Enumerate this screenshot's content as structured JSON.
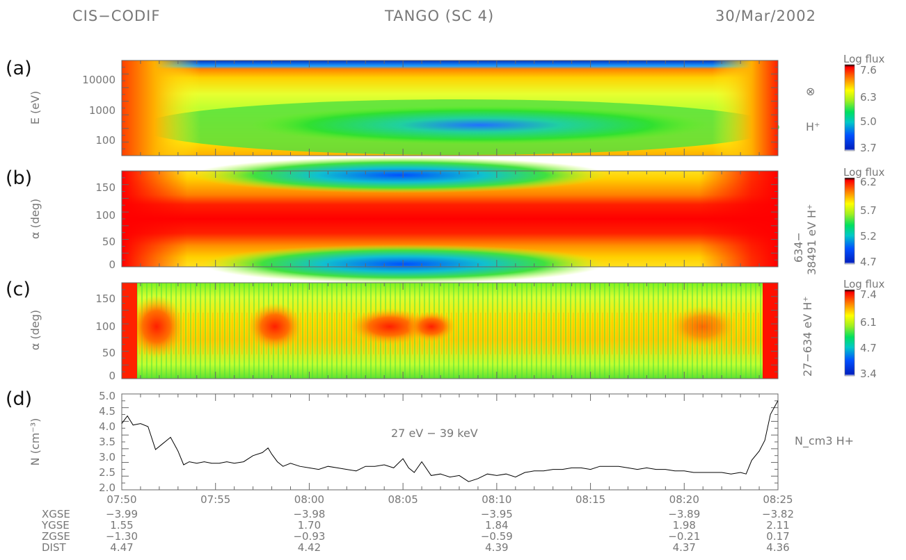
{
  "header": {
    "instrument": "CIS−CODIF",
    "spacecraft": "TANGO (SC 4)",
    "date": "30/Mar/2002"
  },
  "panels": [
    {
      "id": "a",
      "label": "(a)",
      "ylabel": "E (eV)",
      "yticks": [
        "100",
        "1000",
        "10000"
      ],
      "right_label": "H⁺",
      "right_symbol": "⊗",
      "colorbar": {
        "title": "Log flux",
        "ticks": [
          "7.6",
          "6.3",
          "5.0",
          "3.7"
        ]
      }
    },
    {
      "id": "b",
      "label": "(b)",
      "ylabel": "α (deg)",
      "yticks": [
        "0",
        "50",
        "100",
        "150"
      ],
      "right_label": "634−",
      "right_label2": "38491 eV H⁺",
      "colorbar": {
        "title": "Log flux",
        "ticks": [
          "6.2",
          "5.7",
          "5.2",
          "4.7"
        ]
      }
    },
    {
      "id": "c",
      "label": "(c)",
      "ylabel": "α (deg)",
      "yticks": [
        "0",
        "50",
        "100",
        "150"
      ],
      "right_label": "27−634 eV H⁺",
      "colorbar": {
        "title": "Log flux",
        "ticks": [
          "7.4",
          "6.1",
          "4.7",
          "3.4"
        ]
      }
    },
    {
      "id": "d",
      "label": "(d)",
      "ylabel": "N (cm⁻³)",
      "annotation": "27 eV − 39 keV",
      "right_label": "N_cm3   H+"
    }
  ],
  "time_axis": {
    "labels": [
      "07:50",
      "07:55",
      "08:00",
      "08:05",
      "08:10",
      "08:15",
      "08:20",
      "08:25"
    ]
  },
  "ephemeris": {
    "rows": [
      {
        "name": "XGSE",
        "values": [
          "−3.99",
          "−3.98",
          "−3.95",
          "−3.89",
          "−3.82"
        ]
      },
      {
        "name": "YGSE",
        "values": [
          "1.55",
          "1.70",
          "1.84",
          "1.98",
          "2.11"
        ]
      },
      {
        "name": "ZGSE",
        "values": [
          "−1.30",
          "−0.93",
          "−0.59",
          "−0.21",
          "0.17"
        ]
      },
      {
        "name": "DIST",
        "values": [
          "4.47",
          "4.42",
          "4.39",
          "4.37",
          "4.36"
        ]
      }
    ]
  },
  "chart_data": {
    "type": "line",
    "x_unit": "UT minutes after 07:50",
    "xlim": [
      0,
      35
    ],
    "ylim": [
      2.0,
      5.0
    ],
    "yticks": [
      2.0,
      2.5,
      3.0,
      3.5,
      4.0,
      4.5,
      5.0
    ],
    "x": [
      0,
      0.3,
      0.6,
      1,
      1.4,
      1.8,
      2.2,
      2.6,
      3.0,
      3.3,
      3.6,
      4.0,
      4.4,
      4.8,
      5.2,
      5.6,
      6.0,
      6.5,
      7.0,
      7.5,
      7.8,
      8.0,
      8.3,
      8.6,
      9.0,
      9.5,
      10.0,
      10.5,
      11,
      11.5,
      12,
      12.5,
      13,
      13.5,
      14,
      14.5,
      15,
      15.3,
      15.6,
      16,
      16.5,
      17,
      17.5,
      18,
      18.5,
      19,
      19.5,
      20,
      20.5,
      21,
      21.5,
      22,
      22.5,
      23,
      23.5,
      24,
      24.5,
      25,
      25.5,
      26,
      26.5,
      27,
      27.5,
      28,
      28.5,
      29,
      29.5,
      30,
      30.5,
      31,
      31.5,
      32,
      32.5,
      33,
      33.3,
      33.6,
      34,
      34.3,
      34.6,
      35
    ],
    "values": [
      4.1,
      4.35,
      4.05,
      4.1,
      4.0,
      3.25,
      3.45,
      3.65,
      3.2,
      2.75,
      2.85,
      2.8,
      2.85,
      2.8,
      2.8,
      2.85,
      2.8,
      2.85,
      3.05,
      3.15,
      3.3,
      3.1,
      2.85,
      2.7,
      2.8,
      2.7,
      2.65,
      2.6,
      2.7,
      2.65,
      2.6,
      2.55,
      2.7,
      2.7,
      2.75,
      2.65,
      2.95,
      2.65,
      2.5,
      2.85,
      2.4,
      2.45,
      2.35,
      2.4,
      2.2,
      2.3,
      2.45,
      2.4,
      2.45,
      2.35,
      2.5,
      2.55,
      2.55,
      2.6,
      2.6,
      2.65,
      2.65,
      2.6,
      2.7,
      2.7,
      2.7,
      2.65,
      2.6,
      2.65,
      2.6,
      2.6,
      2.55,
      2.55,
      2.5,
      2.5,
      2.5,
      2.5,
      2.45,
      2.5,
      2.45,
      2.9,
      3.2,
      3.55,
      4.4,
      4.85
    ]
  },
  "colors": {
    "axis": "#666666",
    "trace": "#000000"
  }
}
